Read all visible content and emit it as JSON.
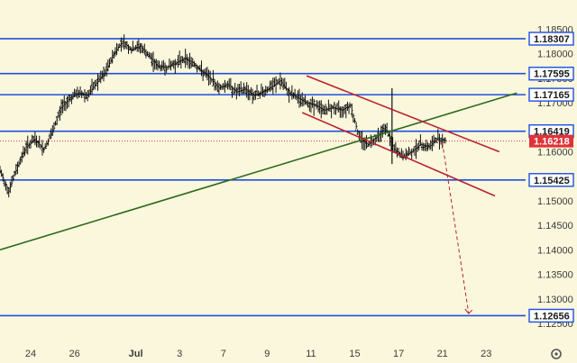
{
  "colors": {
    "background": "#fbf7dc",
    "level_line": "#1f4fe0",
    "channel_line": "#b8232e",
    "trend_line": "#2e6b1f",
    "projection_line": "#b8232e",
    "current_price_badge": "#e0323a",
    "candle": "#111111",
    "label_fill": "#ffffff",
    "axis_text": "#3b3b3b"
  },
  "icons": {
    "settings": "gear-icon"
  },
  "chart_data": {
    "type": "line",
    "instrument_note": "",
    "x_ticks": [
      "24",
      "26",
      "Jul",
      "3",
      "7",
      "9",
      "11",
      "15",
      "17",
      "21",
      "23"
    ],
    "y_ticks": [
      "1.18500",
      "1.18000",
      "1.17500",
      "1.17000",
      "1.16500",
      "1.16000",
      "1.15500",
      "1.15000",
      "1.14500",
      "1.14000",
      "1.13500",
      "1.13000",
      "1.12500"
    ],
    "ylim": [
      1.1215,
      1.1895
    ],
    "horizontal_levels": [
      1.18307,
      1.17595,
      1.17165,
      1.16419,
      1.15425,
      1.12656
    ],
    "level_labels": [
      "1.18307",
      "1.17595",
      "1.17165",
      "1.16419",
      "1.15425",
      "1.12656"
    ],
    "current_price": 1.16218,
    "current_price_label": "1.16218",
    "price_series": {
      "x_index": [
        0,
        2,
        4,
        6,
        8,
        10,
        12,
        14,
        16,
        18,
        20,
        22,
        24,
        26,
        28,
        30,
        32,
        34,
        36,
        38,
        40,
        42,
        44,
        46,
        48,
        50,
        52,
        54,
        56,
        58,
        60,
        62,
        64,
        66,
        68,
        70,
        72,
        74,
        76,
        78,
        80,
        82,
        84,
        86,
        88,
        90,
        92,
        94,
        96,
        98,
        100,
        102
      ],
      "close": [
        1.156,
        1.152,
        1.157,
        1.161,
        1.1625,
        1.1605,
        1.164,
        1.169,
        1.171,
        1.172,
        1.1715,
        1.174,
        1.176,
        1.18,
        1.1825,
        1.1808,
        1.1815,
        1.1795,
        1.1775,
        1.1772,
        1.178,
        1.179,
        1.1782,
        1.1765,
        1.175,
        1.173,
        1.1738,
        1.1722,
        1.1728,
        1.1715,
        1.1722,
        1.1732,
        1.1745,
        1.172,
        1.171,
        1.17,
        1.1695,
        1.1685,
        1.169,
        1.1685,
        1.1695,
        1.163,
        1.1615,
        1.163,
        1.165,
        1.1605,
        1.159,
        1.16,
        1.1615,
        1.161,
        1.1628,
        1.1622
      ]
    },
    "trend_line": {
      "from": [
        0,
        1.14
      ],
      "to": [
        118,
        1.172
      ]
    },
    "channel_upper": {
      "from": [
        70,
        1.1755
      ],
      "to": [
        114,
        1.16
      ]
    },
    "channel_lower": {
      "from": [
        69,
        1.168
      ],
      "to": [
        113,
        1.151
      ]
    },
    "projection": {
      "from": [
        101,
        1.1618
      ],
      "to": [
        107,
        1.127
      ]
    },
    "x_index_range": [
      0,
      120
    ],
    "x_tick_positions": [
      7,
      17,
      31,
      41,
      51,
      61,
      71,
      81,
      91,
      101,
      111
    ],
    "grid": false
  }
}
